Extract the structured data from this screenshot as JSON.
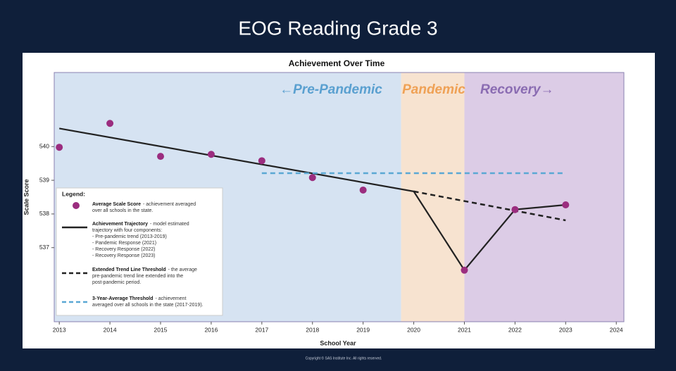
{
  "slide": {
    "title": "EOG Reading Grade 3",
    "copyright": "Copyright © SAS Institute Inc. All rights reserved."
  },
  "chart_data": {
    "type": "line",
    "title": "Achievement Over Time",
    "x_label": "School Year",
    "y_label": "Scale Score",
    "xlim": [
      2012.9,
      2024.15
    ],
    "xticks": [
      2013,
      2014,
      2015,
      2016,
      2017,
      2018,
      2019,
      2020,
      2021,
      2022,
      2023,
      2024
    ],
    "ylim": [
      534.8,
      542.2
    ],
    "yticks": [
      537,
      538,
      539,
      540
    ],
    "regions": [
      {
        "label": "←Pre-Pandemic",
        "xrange": [
          2012.9,
          2019.75
        ],
        "color": "#d6e3f2",
        "label_color": "#5aa0d0"
      },
      {
        "label": "Pandemic",
        "xrange": [
          2019.75,
          2021
        ],
        "color": "#f7e3d0",
        "label_color": "#efa155"
      },
      {
        "label": "Recovery→",
        "xrange": [
          2021,
          2024.15
        ],
        "color": "#dccce6",
        "label_color": "#8a6cb2"
      }
    ],
    "legend_title": "Legend:",
    "series": [
      {
        "name": "Average Scale Score",
        "type": "scatter",
        "color": "#9b2d7f",
        "x": [
          2013,
          2014,
          2015,
          2016,
          2017,
          2018,
          2019,
          2021,
          2022,
          2023
        ],
        "values": [
          539.98,
          540.69,
          539.71,
          539.77,
          539.58,
          539.08,
          538.71,
          536.33,
          538.13,
          538.27
        ],
        "description": [
          "- achievement averaged",
          "over all schools in the state."
        ]
      },
      {
        "name": "Achievement Trajectory",
        "type": "line",
        "color": "#222222",
        "dash": false,
        "x": [
          2013,
          2020,
          2021,
          2022,
          2023
        ],
        "values": [
          540.54,
          538.67,
          536.33,
          538.13,
          538.27
        ],
        "description": [
          "- model estimated",
          "trajectory with four components:",
          "  - Pre-pandemic trend (2013-2019)",
          "  - Pandemic Response (2021)",
          "  - Recovery Response (2022)",
          "  - Recovery Response (2023)"
        ]
      },
      {
        "name": "Extended Trend Line Threshold",
        "type": "line",
        "color": "#222222",
        "dash": true,
        "x": [
          2020,
          2023
        ],
        "values": [
          538.67,
          537.81
        ],
        "description": [
          "- the average",
          "pre-pandemic trend line extended into the",
          "post-pandemic period."
        ]
      },
      {
        "name": "3-Year-Average Threshold",
        "type": "line",
        "color": "#5aa8d4",
        "dash": true,
        "x": [
          2017,
          2023
        ],
        "values": [
          539.21,
          539.21
        ],
        "description": [
          "- achievement",
          "averaged over all schools in the state (2017-2019)."
        ]
      }
    ]
  }
}
